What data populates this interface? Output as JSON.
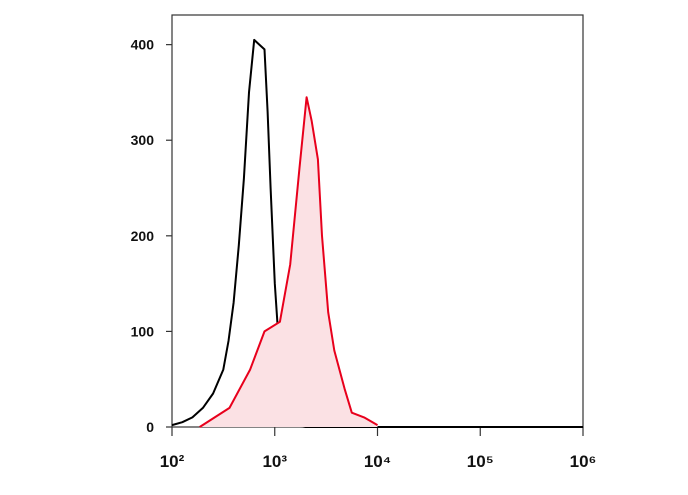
{
  "chart_data": {
    "type": "line",
    "xscale": "log",
    "xlim": [
      100,
      1000000
    ],
    "ylim": [
      0,
      431
    ],
    "xticks": [
      {
        "value": 100,
        "label": "10²"
      },
      {
        "value": 1000,
        "label": "10³"
      },
      {
        "value": 10000,
        "label": "10⁴"
      },
      {
        "value": 100000,
        "label": "10⁵"
      },
      {
        "value": 1000000,
        "label": "10⁶"
      }
    ],
    "yticks": [
      0,
      100,
      200,
      300,
      400
    ],
    "series": [
      {
        "color": "#000000",
        "fill": "none",
        "x": [
          100,
          126,
          158,
          200,
          251,
          316,
          355,
          398,
          447,
          501,
          562,
          631,
          708,
          794,
          851,
          912,
          1000,
          1122,
          1259,
          1413,
          1585,
          1995,
          1000000
        ],
        "values": [
          2,
          5,
          10,
          20,
          35,
          60,
          90,
          130,
          190,
          260,
          350,
          405,
          400,
          395,
          330,
          250,
          150,
          70,
          25,
          8,
          2,
          0,
          0
        ]
      },
      {
        "color": "#e8001c",
        "fill": "#fbe1e4",
        "x": [
          186,
          363,
          575,
          794,
          1122,
          1413,
          1738,
          2042,
          2291,
          2630,
          2884,
          3311,
          3802,
          4786,
          5623,
          7413,
          10000
        ],
        "values": [
          0,
          20,
          60,
          100,
          110,
          170,
          270,
          345,
          320,
          280,
          200,
          120,
          80,
          40,
          15,
          10,
          2
        ]
      }
    ]
  }
}
